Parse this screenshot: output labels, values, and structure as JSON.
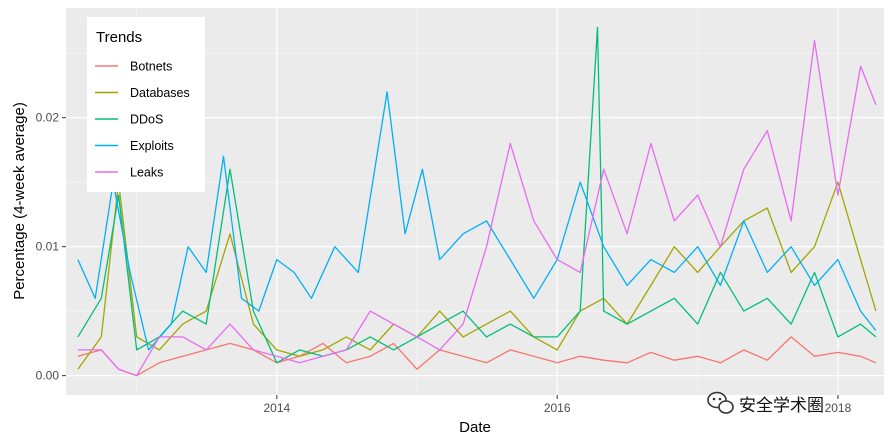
{
  "chart_data": {
    "type": "line",
    "xlabel": "Date",
    "ylabel": "Percentage (4-week average)",
    "xlim": [
      "2012-07-01",
      "2018-05-01"
    ],
    "ylim": [
      -0.0015,
      0.0285
    ],
    "x_ticks": [
      {
        "date": "2014-01-01",
        "label": "2014"
      },
      {
        "date": "2016-01-01",
        "label": "2016"
      },
      {
        "date": "2018-01-01",
        "label": "2018"
      }
    ],
    "y_ticks": [
      {
        "value": 0.0,
        "label": "0.00"
      },
      {
        "value": 0.01,
        "label": "0.01"
      },
      {
        "value": 0.02,
        "label": "0.02"
      }
    ],
    "grid": true,
    "background": "#ebebeb",
    "legend": {
      "title": "Trends",
      "position": "top-left"
    },
    "series": [
      {
        "name": "Botnets",
        "color": "#f8766d",
        "x": [
          "2012-08-01",
          "2012-10-01",
          "2012-11-15",
          "2013-01-01",
          "2013-03-01",
          "2013-05-01",
          "2013-07-01",
          "2013-09-01",
          "2013-11-01",
          "2014-01-01",
          "2014-03-01",
          "2014-05-01",
          "2014-07-01",
          "2014-09-01",
          "2014-11-01",
          "2015-01-01",
          "2015-03-01",
          "2015-05-01",
          "2015-07-01",
          "2015-09-01",
          "2015-11-01",
          "2016-01-01",
          "2016-03-01",
          "2016-05-01",
          "2016-07-01",
          "2016-09-01",
          "2016-11-01",
          "2017-01-01",
          "2017-03-01",
          "2017-05-01",
          "2017-07-01",
          "2017-09-01",
          "2017-11-01",
          "2018-01-01",
          "2018-03-01",
          "2018-04-10"
        ],
        "y": [
          0.0015,
          0.002,
          0.0005,
          0.0,
          0.001,
          0.0015,
          0.002,
          0.0025,
          0.002,
          0.001,
          0.0015,
          0.0025,
          0.001,
          0.0015,
          0.0025,
          0.0005,
          0.002,
          0.0015,
          0.001,
          0.002,
          0.0015,
          0.001,
          0.0015,
          0.0012,
          0.001,
          0.0018,
          0.0012,
          0.0015,
          0.001,
          0.002,
          0.0012,
          0.003,
          0.0015,
          0.0018,
          0.0015,
          0.001
        ]
      },
      {
        "name": "Databases",
        "color": "#a3a500",
        "x": [
          "2012-08-01",
          "2012-10-01",
          "2012-11-15",
          "2013-01-01",
          "2013-03-01",
          "2013-05-01",
          "2013-07-01",
          "2013-09-01",
          "2013-11-01",
          "2014-01-01",
          "2014-03-01",
          "2014-05-01",
          "2014-07-01",
          "2014-09-01",
          "2014-11-01",
          "2015-01-01",
          "2015-03-01",
          "2015-05-01",
          "2015-07-01",
          "2015-09-01",
          "2015-11-01",
          "2016-01-01",
          "2016-03-01",
          "2016-05-01",
          "2016-07-01",
          "2016-09-01",
          "2016-11-01",
          "2017-01-01",
          "2017-03-01",
          "2017-05-01",
          "2017-07-01",
          "2017-09-01",
          "2017-11-01",
          "2018-01-01",
          "2018-03-01",
          "2018-04-10"
        ],
        "y": [
          0.0005,
          0.003,
          0.015,
          0.003,
          0.002,
          0.004,
          0.005,
          0.011,
          0.004,
          0.002,
          0.0015,
          0.002,
          0.003,
          0.002,
          0.004,
          0.003,
          0.005,
          0.003,
          0.004,
          0.005,
          0.003,
          0.002,
          0.005,
          0.006,
          0.004,
          0.007,
          0.01,
          0.008,
          0.01,
          0.012,
          0.013,
          0.008,
          0.01,
          0.015,
          0.009,
          0.005
        ]
      },
      {
        "name": "DDoS",
        "color": "#00bf7d",
        "x": [
          "2012-08-01",
          "2012-10-01",
          "2012-11-15",
          "2013-01-01",
          "2013-03-01",
          "2013-05-01",
          "2013-07-01",
          "2013-09-01",
          "2013-11-01",
          "2014-01-01",
          "2014-03-01",
          "2014-05-01",
          "2014-07-01",
          "2014-09-01",
          "2014-11-01",
          "2015-01-01",
          "2015-03-01",
          "2015-05-01",
          "2015-07-01",
          "2015-09-01",
          "2015-11-01",
          "2016-01-01",
          "2016-03-01",
          "2016-04-15",
          "2016-05-01",
          "2016-07-01",
          "2016-09-01",
          "2016-11-01",
          "2017-01-01",
          "2017-03-01",
          "2017-05-01",
          "2017-07-01",
          "2017-09-01",
          "2017-11-01",
          "2018-01-01",
          "2018-03-01",
          "2018-04-10"
        ],
        "y": [
          0.003,
          0.006,
          0.014,
          0.002,
          0.003,
          0.005,
          0.004,
          0.016,
          0.005,
          0.001,
          0.002,
          0.0015,
          0.002,
          0.003,
          0.002,
          0.003,
          0.004,
          0.005,
          0.003,
          0.004,
          0.003,
          0.003,
          0.005,
          0.027,
          0.005,
          0.004,
          0.005,
          0.006,
          0.004,
          0.008,
          0.005,
          0.006,
          0.004,
          0.008,
          0.003,
          0.004,
          0.003
        ]
      },
      {
        "name": "Exploits",
        "color": "#00b0f6",
        "x": [
          "2012-08-01",
          "2012-09-15",
          "2012-11-01",
          "2012-12-15",
          "2013-02-01",
          "2013-04-01",
          "2013-05-15",
          "2013-07-01",
          "2013-08-15",
          "2013-10-01",
          "2013-11-15",
          "2014-01-01",
          "2014-02-15",
          "2014-04-01",
          "2014-06-01",
          "2014-08-01",
          "2014-10-15",
          "2014-12-01",
          "2015-01-15",
          "2015-03-01",
          "2015-05-01",
          "2015-07-01",
          "2015-09-01",
          "2015-11-01",
          "2016-01-01",
          "2016-03-01",
          "2016-05-01",
          "2016-07-01",
          "2016-09-01",
          "2016-11-01",
          "2017-01-01",
          "2017-03-01",
          "2017-05-01",
          "2017-07-01",
          "2017-09-01",
          "2017-11-01",
          "2018-01-01",
          "2018-03-01",
          "2018-04-10"
        ],
        "y": [
          0.009,
          0.006,
          0.015,
          0.008,
          0.002,
          0.004,
          0.01,
          0.008,
          0.017,
          0.006,
          0.005,
          0.009,
          0.008,
          0.006,
          0.01,
          0.008,
          0.022,
          0.011,
          0.016,
          0.009,
          0.011,
          0.012,
          0.009,
          0.006,
          0.009,
          0.015,
          0.01,
          0.007,
          0.009,
          0.008,
          0.01,
          0.007,
          0.012,
          0.008,
          0.01,
          0.007,
          0.009,
          0.005,
          0.0035
        ]
      },
      {
        "name": "Leaks",
        "color": "#e76bf3",
        "x": [
          "2012-08-01",
          "2012-10-01",
          "2012-11-15",
          "2013-01-01",
          "2013-03-01",
          "2013-05-01",
          "2013-07-01",
          "2013-09-01",
          "2013-11-01",
          "2014-01-01",
          "2014-03-01",
          "2014-05-01",
          "2014-07-01",
          "2014-09-01",
          "2014-11-01",
          "2015-01-01",
          "2015-03-01",
          "2015-05-01",
          "2015-07-01",
          "2015-09-01",
          "2015-11-01",
          "2016-01-01",
          "2016-03-01",
          "2016-05-01",
          "2016-07-01",
          "2016-09-01",
          "2016-11-01",
          "2017-01-01",
          "2017-03-01",
          "2017-05-01",
          "2017-07-01",
          "2017-09-01",
          "2017-11-01",
          "2018-01-01",
          "2018-03-01",
          "2018-04-10"
        ],
        "y": [
          0.002,
          0.002,
          0.0005,
          0.0,
          0.003,
          0.003,
          0.002,
          0.004,
          0.002,
          0.0015,
          0.001,
          0.0015,
          0.002,
          0.005,
          0.004,
          0.003,
          0.002,
          0.004,
          0.01,
          0.018,
          0.012,
          0.009,
          0.008,
          0.016,
          0.011,
          0.018,
          0.012,
          0.014,
          0.01,
          0.016,
          0.019,
          0.012,
          0.026,
          0.014,
          0.024,
          0.021
        ]
      }
    ]
  },
  "watermark": {
    "icon": "wechat-icon",
    "text": "安全学术圈"
  }
}
